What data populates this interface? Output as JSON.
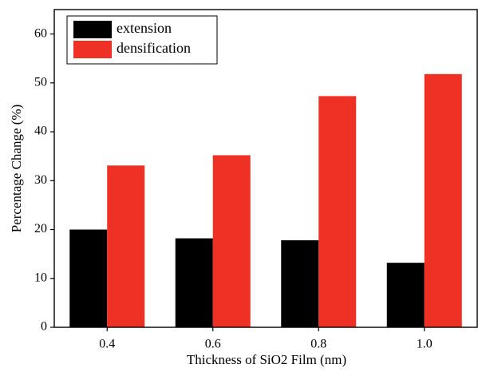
{
  "chart_data": {
    "type": "bar",
    "x_label": "Thickness of SiO2 Film  (nm)",
    "y_label": "Percentage Change  (%)",
    "categories": [
      "0.4",
      "0.6",
      "0.8",
      "1.0"
    ],
    "series": [
      {
        "name": "extension",
        "color": "#000000",
        "values": [
          20,
          18.2,
          17.8,
          13.2
        ]
      },
      {
        "name": "densification",
        "color": "#ee3124",
        "values": [
          33.1,
          35.2,
          47.3,
          51.8
        ]
      }
    ],
    "ylim": [
      0,
      65
    ],
    "yticks": [
      0,
      10,
      20,
      30,
      40,
      50,
      60
    ],
    "legend": "upper left"
  }
}
